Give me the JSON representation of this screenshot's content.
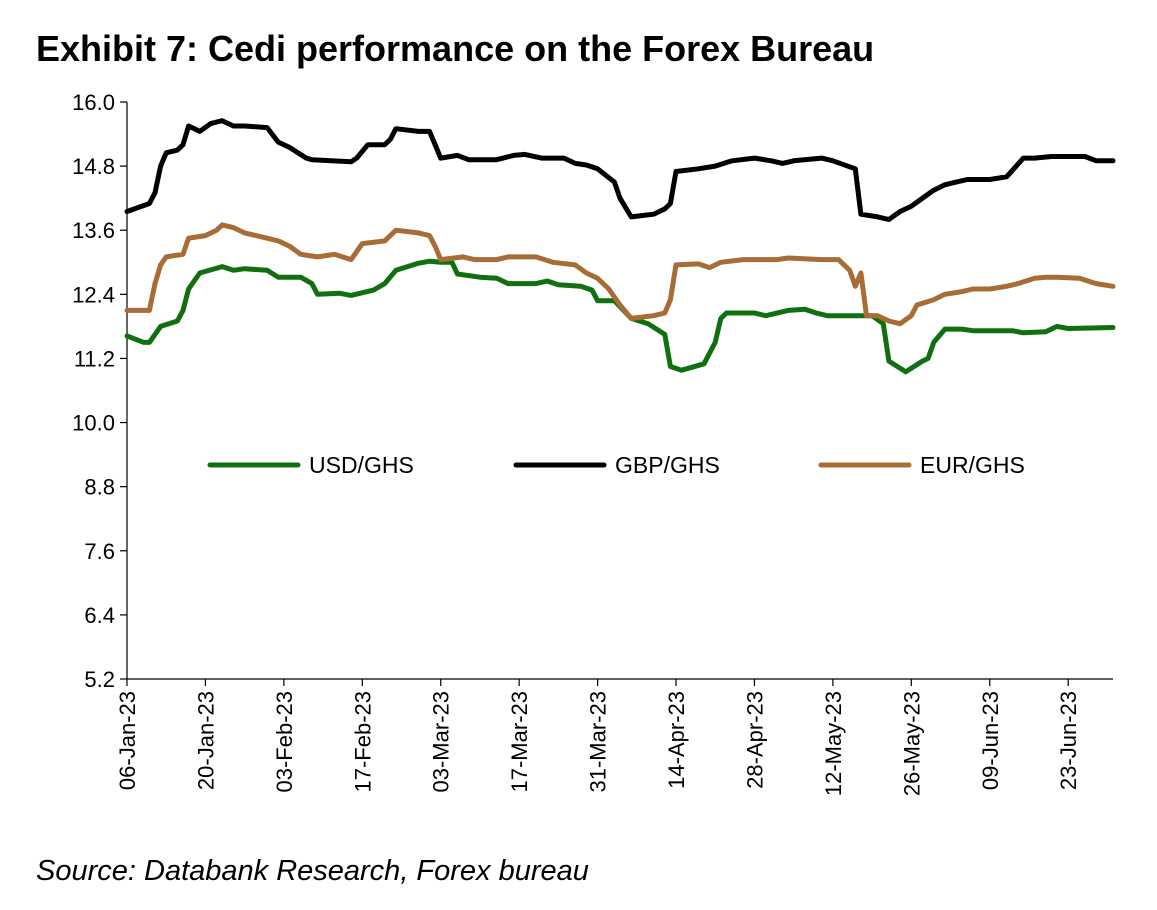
{
  "title": "Exhibit 7: Cedi performance on the Forex Bureau",
  "source": "Source: Databank Research, Forex bureau",
  "chart_data": {
    "type": "line",
    "ylim": [
      5.2,
      16.0
    ],
    "y_ticks": [
      16.0,
      14.8,
      13.6,
      12.4,
      11.2,
      10.0,
      8.8,
      7.6,
      6.4,
      5.2
    ],
    "y_tick_labels": [
      "16.0",
      "14.8",
      "13.6",
      "12.4",
      "11.2",
      "10.0",
      "8.8",
      "7.6",
      "6.4",
      "5.2"
    ],
    "x_range": [
      "2023-01-06",
      "2023-07-01"
    ],
    "x_ticks": [
      "2023-01-06",
      "2023-01-20",
      "2023-02-03",
      "2023-02-17",
      "2023-03-03",
      "2023-03-17",
      "2023-03-31",
      "2023-04-14",
      "2023-04-28",
      "2023-05-12",
      "2023-05-26",
      "2023-06-09",
      "2023-06-23"
    ],
    "x_tick_labels": [
      "06-Jan-23",
      "20-Jan-23",
      "03-Feb-23",
      "17-Feb-23",
      "03-Mar-23",
      "17-Mar-23",
      "31-Mar-23",
      "14-Apr-23",
      "28-Apr-23",
      "12-May-23",
      "26-May-23",
      "09-Jun-23",
      "23-Jun-23"
    ],
    "grid": false,
    "legend_position": "middle",
    "series": [
      {
        "name": "USD/GHS",
        "color": "#107010",
        "points": [
          [
            "2023-01-06",
            11.62
          ],
          [
            "2023-01-09",
            11.5
          ],
          [
            "2023-01-10",
            11.5
          ],
          [
            "2023-01-12",
            11.8
          ],
          [
            "2023-01-15",
            11.9
          ],
          [
            "2023-01-16",
            12.1
          ],
          [
            "2023-01-17",
            12.5
          ],
          [
            "2023-01-19",
            12.8
          ],
          [
            "2023-01-23",
            12.92
          ],
          [
            "2023-01-25",
            12.85
          ],
          [
            "2023-01-27",
            12.88
          ],
          [
            "2023-01-31",
            12.85
          ],
          [
            "2023-02-02",
            12.72
          ],
          [
            "2023-02-06",
            12.72
          ],
          [
            "2023-02-08",
            12.6
          ],
          [
            "2023-02-09",
            12.4
          ],
          [
            "2023-02-13",
            12.42
          ],
          [
            "2023-02-15",
            12.38
          ],
          [
            "2023-02-19",
            12.48
          ],
          [
            "2023-02-21",
            12.6
          ],
          [
            "2023-02-23",
            12.85
          ],
          [
            "2023-02-27",
            12.98
          ],
          [
            "2023-03-01",
            13.02
          ],
          [
            "2023-03-03",
            13.0
          ],
          [
            "2023-03-05",
            13.0
          ],
          [
            "2023-03-06",
            12.78
          ],
          [
            "2023-03-10",
            12.72
          ],
          [
            "2023-03-13",
            12.7
          ],
          [
            "2023-03-15",
            12.6
          ],
          [
            "2023-03-20",
            12.6
          ],
          [
            "2023-03-22",
            12.65
          ],
          [
            "2023-03-24",
            12.58
          ],
          [
            "2023-03-28",
            12.55
          ],
          [
            "2023-03-30",
            12.48
          ],
          [
            "2023-03-31",
            12.28
          ],
          [
            "2023-04-03",
            12.28
          ],
          [
            "2023-04-06",
            11.95
          ],
          [
            "2023-04-09",
            11.85
          ],
          [
            "2023-04-12",
            11.65
          ],
          [
            "2023-04-13",
            11.05
          ],
          [
            "2023-04-15",
            10.98
          ],
          [
            "2023-04-19",
            11.1
          ],
          [
            "2023-04-21",
            11.5
          ],
          [
            "2023-04-22",
            11.95
          ],
          [
            "2023-04-23",
            12.05
          ],
          [
            "2023-04-28",
            12.05
          ],
          [
            "2023-04-30",
            12.0
          ],
          [
            "2023-05-04",
            12.1
          ],
          [
            "2023-05-07",
            12.12
          ],
          [
            "2023-05-09",
            12.05
          ],
          [
            "2023-05-11",
            12.0
          ],
          [
            "2023-05-15",
            12.0
          ],
          [
            "2023-05-19",
            12.0
          ],
          [
            "2023-05-21",
            11.85
          ],
          [
            "2023-05-22",
            11.15
          ],
          [
            "2023-05-25",
            10.95
          ],
          [
            "2023-05-28",
            11.15
          ],
          [
            "2023-05-29",
            11.2
          ],
          [
            "2023-05-30",
            11.5
          ],
          [
            "2023-06-01",
            11.75
          ],
          [
            "2023-06-04",
            11.75
          ],
          [
            "2023-06-06",
            11.72
          ],
          [
            "2023-06-13",
            11.72
          ],
          [
            "2023-06-15",
            11.68
          ],
          [
            "2023-06-19",
            11.7
          ],
          [
            "2023-06-21",
            11.8
          ],
          [
            "2023-06-23",
            11.76
          ],
          [
            "2023-07-01",
            11.78
          ]
        ]
      },
      {
        "name": "GBP/GHS",
        "color": "#000000",
        "points": [
          [
            "2023-01-06",
            13.95
          ],
          [
            "2023-01-10",
            14.1
          ],
          [
            "2023-01-11",
            14.3
          ],
          [
            "2023-01-12",
            14.8
          ],
          [
            "2023-01-13",
            15.05
          ],
          [
            "2023-01-15",
            15.1
          ],
          [
            "2023-01-16",
            15.2
          ],
          [
            "2023-01-17",
            15.55
          ],
          [
            "2023-01-19",
            15.45
          ],
          [
            "2023-01-21",
            15.6
          ],
          [
            "2023-01-23",
            15.65
          ],
          [
            "2023-01-25",
            15.55
          ],
          [
            "2023-01-27",
            15.55
          ],
          [
            "2023-01-31",
            15.52
          ],
          [
            "2023-02-02",
            15.25
          ],
          [
            "2023-02-04",
            15.15
          ],
          [
            "2023-02-07",
            14.95
          ],
          [
            "2023-02-08",
            14.92
          ],
          [
            "2023-02-15",
            14.88
          ],
          [
            "2023-02-16",
            14.95
          ],
          [
            "2023-02-18",
            15.2
          ],
          [
            "2023-02-21",
            15.2
          ],
          [
            "2023-02-22",
            15.3
          ],
          [
            "2023-02-23",
            15.5
          ],
          [
            "2023-02-27",
            15.45
          ],
          [
            "2023-03-01",
            15.45
          ],
          [
            "2023-03-02",
            15.2
          ],
          [
            "2023-03-03",
            14.95
          ],
          [
            "2023-03-06",
            15.0
          ],
          [
            "2023-03-08",
            14.92
          ],
          [
            "2023-03-13",
            14.92
          ],
          [
            "2023-03-16",
            15.0
          ],
          [
            "2023-03-18",
            15.02
          ],
          [
            "2023-03-21",
            14.95
          ],
          [
            "2023-03-25",
            14.95
          ],
          [
            "2023-03-27",
            14.85
          ],
          [
            "2023-03-29",
            14.82
          ],
          [
            "2023-03-31",
            14.75
          ],
          [
            "2023-04-03",
            14.5
          ],
          [
            "2023-04-04",
            14.2
          ],
          [
            "2023-04-06",
            13.85
          ],
          [
            "2023-04-10",
            13.9
          ],
          [
            "2023-04-12",
            14.0
          ],
          [
            "2023-04-13",
            14.1
          ],
          [
            "2023-04-14",
            14.7
          ],
          [
            "2023-04-18",
            14.75
          ],
          [
            "2023-04-21",
            14.8
          ],
          [
            "2023-04-24",
            14.9
          ],
          [
            "2023-04-28",
            14.95
          ],
          [
            "2023-05-01",
            14.9
          ],
          [
            "2023-05-03",
            14.85
          ],
          [
            "2023-05-05",
            14.9
          ],
          [
            "2023-05-10",
            14.95
          ],
          [
            "2023-05-12",
            14.9
          ],
          [
            "2023-05-16",
            14.75
          ],
          [
            "2023-05-17",
            13.9
          ],
          [
            "2023-05-20",
            13.85
          ],
          [
            "2023-05-22",
            13.8
          ],
          [
            "2023-05-24",
            13.95
          ],
          [
            "2023-05-26",
            14.05
          ],
          [
            "2023-05-28",
            14.2
          ],
          [
            "2023-05-30",
            14.35
          ],
          [
            "2023-06-01",
            14.45
          ],
          [
            "2023-06-03",
            14.5
          ],
          [
            "2023-06-05",
            14.55
          ],
          [
            "2023-06-09",
            14.55
          ],
          [
            "2023-06-12",
            14.6
          ],
          [
            "2023-06-15",
            14.95
          ],
          [
            "2023-06-17",
            14.95
          ],
          [
            "2023-06-20",
            14.98
          ],
          [
            "2023-06-26",
            14.98
          ],
          [
            "2023-06-28",
            14.9
          ],
          [
            "2023-07-01",
            14.9
          ]
        ]
      },
      {
        "name": "EUR/GHS",
        "color": "#A86C36",
        "points": [
          [
            "2023-01-06",
            12.1
          ],
          [
            "2023-01-10",
            12.1
          ],
          [
            "2023-01-11",
            12.6
          ],
          [
            "2023-01-12",
            12.95
          ],
          [
            "2023-01-13",
            13.1
          ],
          [
            "2023-01-16",
            13.15
          ],
          [
            "2023-01-17",
            13.45
          ],
          [
            "2023-01-20",
            13.5
          ],
          [
            "2023-01-22",
            13.6
          ],
          [
            "2023-01-23",
            13.7
          ],
          [
            "2023-01-25",
            13.65
          ],
          [
            "2023-01-27",
            13.55
          ],
          [
            "2023-01-31",
            13.45
          ],
          [
            "2023-02-02",
            13.4
          ],
          [
            "2023-02-04",
            13.3
          ],
          [
            "2023-02-06",
            13.15
          ],
          [
            "2023-02-09",
            13.1
          ],
          [
            "2023-02-12",
            13.15
          ],
          [
            "2023-02-15",
            13.05
          ],
          [
            "2023-02-17",
            13.35
          ],
          [
            "2023-02-21",
            13.4
          ],
          [
            "2023-02-23",
            13.6
          ],
          [
            "2023-02-27",
            13.55
          ],
          [
            "2023-03-01",
            13.5
          ],
          [
            "2023-03-02",
            13.3
          ],
          [
            "2023-03-03",
            13.05
          ],
          [
            "2023-03-07",
            13.1
          ],
          [
            "2023-03-09",
            13.05
          ],
          [
            "2023-03-13",
            13.05
          ],
          [
            "2023-03-15",
            13.1
          ],
          [
            "2023-03-20",
            13.1
          ],
          [
            "2023-03-23",
            13.0
          ],
          [
            "2023-03-27",
            12.95
          ],
          [
            "2023-03-29",
            12.8
          ],
          [
            "2023-03-31",
            12.7
          ],
          [
            "2023-04-02",
            12.5
          ],
          [
            "2023-04-04",
            12.2
          ],
          [
            "2023-04-06",
            11.95
          ],
          [
            "2023-04-10",
            12.0
          ],
          [
            "2023-04-12",
            12.05
          ],
          [
            "2023-04-13",
            12.3
          ],
          [
            "2023-04-14",
            12.95
          ],
          [
            "2023-04-18",
            12.97
          ],
          [
            "2023-04-20",
            12.9
          ],
          [
            "2023-04-22",
            13.0
          ],
          [
            "2023-04-26",
            13.05
          ],
          [
            "2023-04-29",
            13.05
          ],
          [
            "2023-05-02",
            13.05
          ],
          [
            "2023-05-04",
            13.08
          ],
          [
            "2023-05-10",
            13.05
          ],
          [
            "2023-05-13",
            13.05
          ],
          [
            "2023-05-15",
            12.85
          ],
          [
            "2023-05-16",
            12.55
          ],
          [
            "2023-05-17",
            12.8
          ],
          [
            "2023-05-18",
            12.0
          ],
          [
            "2023-05-20",
            12.0
          ],
          [
            "2023-05-22",
            11.9
          ],
          [
            "2023-05-24",
            11.85
          ],
          [
            "2023-05-26",
            12.0
          ],
          [
            "2023-05-27",
            12.2
          ],
          [
            "2023-05-30",
            12.3
          ],
          [
            "2023-06-01",
            12.4
          ],
          [
            "2023-06-04",
            12.45
          ],
          [
            "2023-06-06",
            12.5
          ],
          [
            "2023-06-09",
            12.5
          ],
          [
            "2023-06-12",
            12.55
          ],
          [
            "2023-06-14",
            12.6
          ],
          [
            "2023-06-17",
            12.7
          ],
          [
            "2023-06-19",
            12.72
          ],
          [
            "2023-06-21",
            12.72
          ],
          [
            "2023-06-25",
            12.7
          ],
          [
            "2023-06-28",
            12.6
          ],
          [
            "2023-07-01",
            12.55
          ]
        ]
      }
    ]
  }
}
